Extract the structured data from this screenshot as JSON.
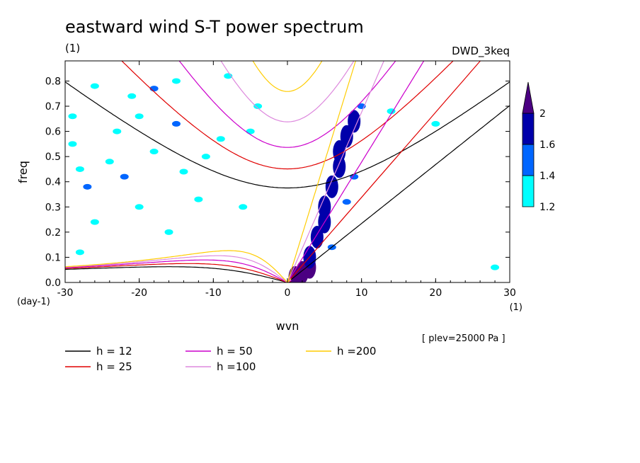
{
  "chart_data": {
    "type": "heatmap",
    "title": "eastward wind S-T power spectrum",
    "subtitle_left": "(1)",
    "subtitle_right": "DWD_3keq",
    "xlabel": "wvn",
    "ylabel": "freq",
    "x_unit": "(1)",
    "y_unit": "(day-1)",
    "xlim": [
      -30,
      30
    ],
    "ylim": [
      0,
      0.88
    ],
    "x_ticks": [
      -30,
      -20,
      -10,
      0,
      10,
      20,
      30
    ],
    "x_tick_labels": [
      "-30",
      "-20",
      "-10",
      "0",
      "10",
      "20",
      "30"
    ],
    "y_ticks": [
      0,
      0.1,
      0.2,
      0.3,
      0.4,
      0.5,
      0.6,
      0.7,
      0.8
    ],
    "y_tick_labels": [
      "0.0",
      "0.1",
      "0.2",
      "0.3",
      "0.4",
      "0.5",
      "0.6",
      "0.7",
      "0.8"
    ],
    "annotation": "[ plev=25000 Pa ]",
    "colorbar": {
      "levels": [
        1.2,
        1.4,
        1.6,
        2
      ],
      "labels": [
        "1.2",
        "1.4",
        "1.6",
        "2"
      ],
      "colors": [
        "#00ffff",
        "#0066ff",
        "#0000aa",
        "#4b0082"
      ]
    },
    "dispersion_curves": [
      {
        "name": "h = 12",
        "h": 12,
        "color": "#000000"
      },
      {
        "name": "h = 25",
        "h": 25,
        "color": "#e00000"
      },
      {
        "name": "h = 50",
        "h": 50,
        "color": "#cc00cc"
      },
      {
        "name": "h =100",
        "h": 100,
        "color": "#dd88dd"
      },
      {
        "name": "h =200",
        "h": 200,
        "color": "#ffcc00"
      }
    ],
    "spectral_peaks": [
      {
        "wvn": 1,
        "freq": 0.02,
        "level": 2
      },
      {
        "wvn": 2,
        "freq": 0.04,
        "level": 2
      },
      {
        "wvn": 3,
        "freq": 0.06,
        "level": 2
      },
      {
        "wvn": 3,
        "freq": 0.1,
        "level": 1.6
      },
      {
        "wvn": 4,
        "freq": 0.18,
        "level": 1.6
      },
      {
        "wvn": 5,
        "freq": 0.24,
        "level": 1.6
      },
      {
        "wvn": 5,
        "freq": 0.3,
        "level": 1.6
      },
      {
        "wvn": 6,
        "freq": 0.38,
        "level": 1.6
      },
      {
        "wvn": 7,
        "freq": 0.46,
        "level": 1.6
      },
      {
        "wvn": 7,
        "freq": 0.52,
        "level": 1.6
      },
      {
        "wvn": 8,
        "freq": 0.58,
        "level": 1.6
      },
      {
        "wvn": 9,
        "freq": 0.64,
        "level": 1.6
      },
      {
        "wvn": 6,
        "freq": 0.14,
        "level": 1.4
      },
      {
        "wvn": 8,
        "freq": 0.32,
        "level": 1.4
      },
      {
        "wvn": 9,
        "freq": 0.42,
        "level": 1.4
      },
      {
        "wvn": 10,
        "freq": 0.7,
        "level": 1.4
      },
      {
        "wvn": 14,
        "freq": 0.68,
        "level": 1.2
      },
      {
        "wvn": -26,
        "freq": 0.78,
        "level": 1.2
      },
      {
        "wvn": -18,
        "freq": 0.77,
        "level": 1.4
      },
      {
        "wvn": -15,
        "freq": 0.8,
        "level": 1.2
      },
      {
        "wvn": -8,
        "freq": 0.82,
        "level": 1.2
      },
      {
        "wvn": -29,
        "freq": 0.55,
        "level": 1.2
      },
      {
        "wvn": -28,
        "freq": 0.45,
        "level": 1.2
      },
      {
        "wvn": -27,
        "freq": 0.38,
        "level": 1.4
      },
      {
        "wvn": -24,
        "freq": 0.48,
        "level": 1.2
      },
      {
        "wvn": -23,
        "freq": 0.6,
        "level": 1.2
      },
      {
        "wvn": -22,
        "freq": 0.42,
        "level": 1.4
      },
      {
        "wvn": -20,
        "freq": 0.66,
        "level": 1.2
      },
      {
        "wvn": -18,
        "freq": 0.52,
        "level": 1.2
      },
      {
        "wvn": -15,
        "freq": 0.63,
        "level": 1.4
      },
      {
        "wvn": -14,
        "freq": 0.44,
        "level": 1.2
      },
      {
        "wvn": -11,
        "freq": 0.5,
        "level": 1.2
      },
      {
        "wvn": -9,
        "freq": 0.57,
        "level": 1.2
      },
      {
        "wvn": -5,
        "freq": 0.6,
        "level": 1.2
      },
      {
        "wvn": -4,
        "freq": 0.7,
        "level": 1.2
      },
      {
        "wvn": -20,
        "freq": 0.3,
        "level": 1.2
      },
      {
        "wvn": -12,
        "freq": 0.33,
        "level": 1.2
      },
      {
        "wvn": -6,
        "freq": 0.3,
        "level": 1.2
      },
      {
        "wvn": -26,
        "freq": 0.24,
        "level": 1.2
      },
      {
        "wvn": -28,
        "freq": 0.12,
        "level": 1.2
      },
      {
        "wvn": -16,
        "freq": 0.2,
        "level": 1.2
      },
      {
        "wvn": -29,
        "freq": 0.66,
        "level": 1.2
      },
      {
        "wvn": -21,
        "freq": 0.74,
        "level": 1.2
      },
      {
        "wvn": 20,
        "freq": 0.63,
        "level": 1.2
      },
      {
        "wvn": 28,
        "freq": 0.06,
        "level": 1.2
      }
    ]
  }
}
